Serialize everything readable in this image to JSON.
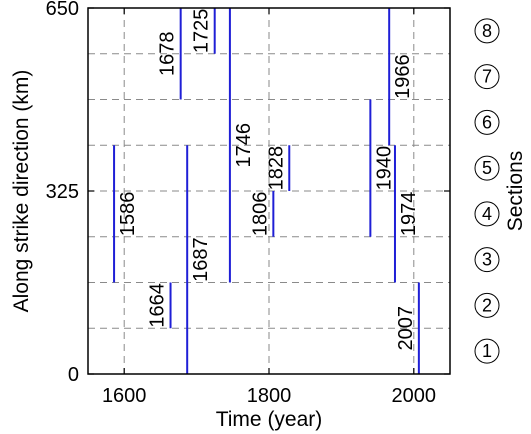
{
  "chart_data": {
    "type": "segment",
    "xlabel": "Time (year)",
    "ylabel": "Along strike direction (km)",
    "right_label": "Sections",
    "xlim": [
      1550,
      2050
    ],
    "ylim": [
      0,
      650
    ],
    "x_ticks": [
      "1600",
      "1800",
      "2000"
    ],
    "x_tick_values": [
      1600,
      1800,
      2000
    ],
    "y_ticks": [
      "0",
      "325",
      "650"
    ],
    "y_tick_values": [
      0,
      325,
      650
    ],
    "section_boundaries_km": [
      0,
      81.25,
      162.5,
      243.75,
      325,
      406.25,
      487.5,
      568.75,
      650
    ],
    "sections": [
      "1",
      "2",
      "3",
      "4",
      "5",
      "6",
      "7",
      "8"
    ],
    "grid": true,
    "line_color": "#1f1fd6",
    "ruptures": [
      {
        "year": 1586,
        "label": "1586",
        "y_start": 162.5,
        "y_end": 406.25
      },
      {
        "year": 1664,
        "label": "1664",
        "y_start": 81.25,
        "y_end": 162.5
      },
      {
        "year": 1678,
        "label": "1678",
        "y_start": 487.5,
        "y_end": 650
      },
      {
        "year": 1687,
        "label": "1687",
        "y_start": 0,
        "y_end": 406.25
      },
      {
        "year": 1725,
        "label": "1725",
        "y_start": 568.75,
        "y_end": 650
      },
      {
        "year": 1746,
        "label": "1746",
        "y_start": 162.5,
        "y_end": 650
      },
      {
        "year": 1806,
        "label": "1806",
        "y_start": 243.75,
        "y_end": 325
      },
      {
        "year": 1828,
        "label": "1828",
        "y_start": 325,
        "y_end": 406.25
      },
      {
        "year": 1940,
        "label": "1940",
        "y_start": 243.75,
        "y_end": 487.5
      },
      {
        "year": 1966,
        "label": "1966",
        "y_start": 406.25,
        "y_end": 650
      },
      {
        "year": 1974,
        "label": "1974",
        "y_start": 162.5,
        "y_end": 406.25
      },
      {
        "year": 2007,
        "label": "2007",
        "y_start": 0,
        "y_end": 162.5
      }
    ]
  }
}
